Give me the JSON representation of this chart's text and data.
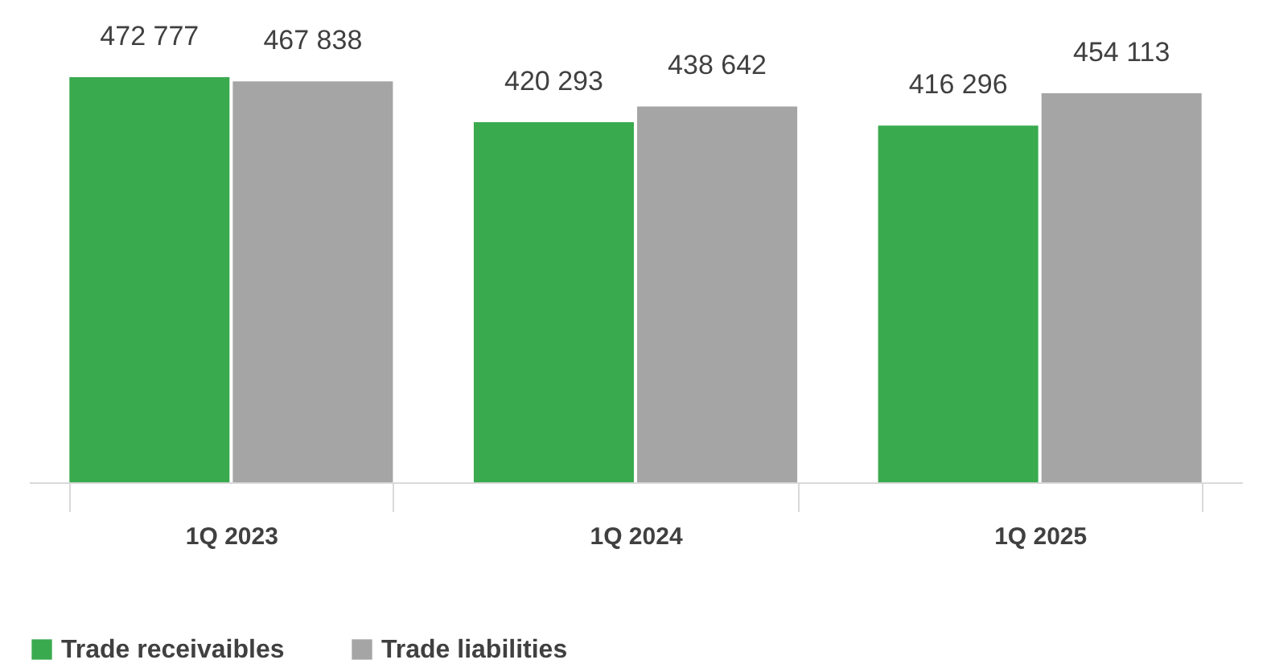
{
  "chart_data": {
    "type": "bar",
    "categories": [
      "1Q 2023",
      "1Q 2024",
      "1Q 2025"
    ],
    "series": [
      {
        "name": "Trade receivaibles",
        "color": "#3aaa4f",
        "values": [
          472777,
          420293,
          416296
        ],
        "value_labels": [
          "472 777",
          "420 293",
          "416 296"
        ]
      },
      {
        "name": "Trade liabilities",
        "color": "#a5a5a5",
        "values": [
          467838,
          438642,
          454113
        ],
        "value_labels": [
          "467 838",
          "438 642",
          "454 113"
        ]
      }
    ],
    "legend": "bottom"
  }
}
